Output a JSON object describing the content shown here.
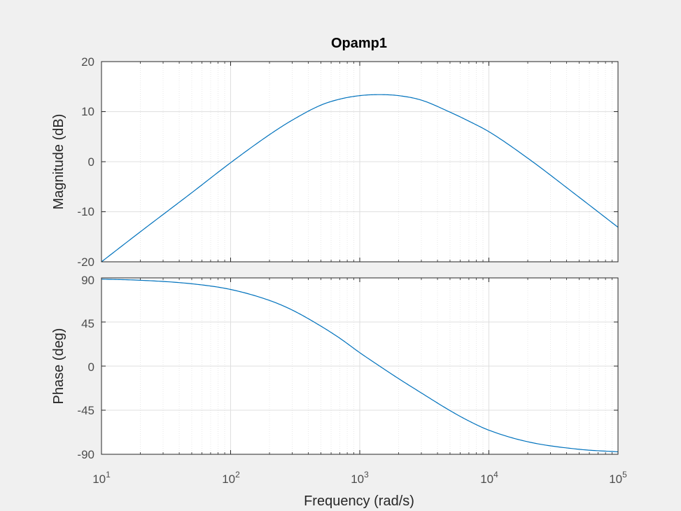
{
  "colors": {
    "figure_bg": "#f0f0f0",
    "axes_bg": "#ffffff",
    "axes_edge": "#262626",
    "major_grid": "#dfdfdf",
    "minor_grid": "#e8e8e8",
    "line": "#0072bd",
    "tick_text": "#4d4d4d"
  },
  "chart_data": {
    "type": "line",
    "title": "Opamp1",
    "xlabel": "Frequency  (rad/s)",
    "xscale": "log",
    "xlim": [
      10,
      100000
    ],
    "x_ticks": [
      {
        "base": "10",
        "exp": "1"
      },
      {
        "base": "10",
        "exp": "2"
      },
      {
        "base": "10",
        "exp": "3"
      },
      {
        "base": "10",
        "exp": "4"
      },
      {
        "base": "10",
        "exp": "5"
      }
    ],
    "grid": true,
    "subplots": [
      {
        "name": "magnitude",
        "ylabel": "Magnitude (dB)",
        "ylim": [
          -20,
          20
        ],
        "y_ticks": [
          "20",
          "10",
          "0",
          "-10",
          "-20"
        ],
        "series": [
          {
            "name": "Opamp1",
            "x": [
              10,
              20,
              50,
              100,
              200,
              300,
              500,
              700,
              1000,
              1414,
              2000,
              3000,
              5000,
              7000,
              10000,
              20000,
              50000,
              100000
            ],
            "y": [
              -20.0,
              -14.0,
              -6.2,
              -0.2,
              5.4,
              8.3,
              11.3,
              12.5,
              13.2,
              13.4,
              13.2,
              12.3,
              9.9,
              8.1,
              6.0,
              0.7,
              -7.1,
              -13.1
            ]
          }
        ]
      },
      {
        "name": "phase",
        "ylabel": "Phase (deg)",
        "ylim": [
          -90,
          90
        ],
        "y_ticks": [
          "90",
          "45",
          "0",
          "-45",
          "-90"
        ],
        "series": [
          {
            "name": "Opamp1",
            "x": [
              10,
              20,
              50,
              100,
              200,
              300,
              500,
              700,
              1000,
              1414,
              2000,
              3000,
              5000,
              7000,
              10000,
              20000,
              50000,
              100000
            ],
            "y": [
              88.7,
              87.6,
              84.0,
              78.2,
              67.0,
              57.2,
              40.8,
              28.5,
              13.7,
              0.3,
              -12.8,
              -27.4,
              -45.4,
              -56.0,
              -65.4,
              -77.2,
              -84.9,
              -87.5
            ]
          }
        ]
      }
    ]
  }
}
